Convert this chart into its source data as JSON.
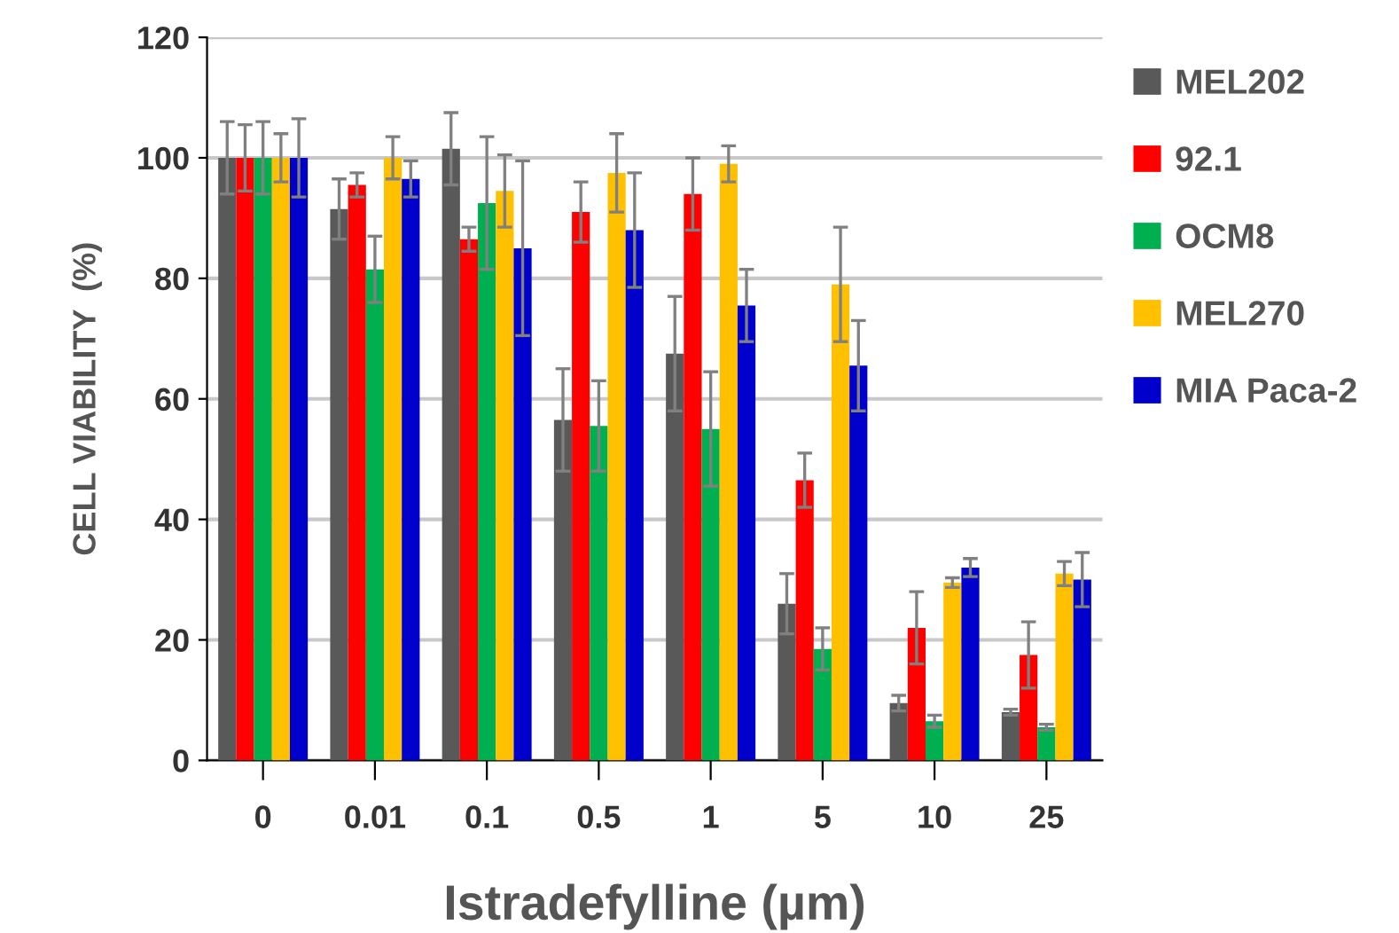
{
  "chart_data": {
    "type": "bar",
    "xlabel": "Istradefylline (µm)",
    "ylabel": "CELL VIABILITY  (%)",
    "categories": [
      "0",
      "0.01",
      "0.1",
      "0.5",
      "1",
      "5",
      "10",
      "25"
    ],
    "series": [
      {
        "name": "MEL202",
        "color": "#595959",
        "values": [
          100,
          91.5,
          101.5,
          56.5,
          67.5,
          26,
          9.5,
          8
        ],
        "errors": [
          6,
          5,
          6,
          8.5,
          9.5,
          5,
          1.3,
          0.5
        ]
      },
      {
        "name": "92.1",
        "color": "#ff0000",
        "values": [
          100,
          95.5,
          86.5,
          91,
          94,
          46.5,
          22,
          17.5
        ],
        "errors": [
          5.5,
          2,
          2,
          5,
          6,
          4.5,
          6,
          5.5
        ]
      },
      {
        "name": "OCM8",
        "color": "#00b050",
        "values": [
          100,
          81.5,
          92.5,
          55.5,
          55,
          18.5,
          6.5,
          5.5
        ],
        "errors": [
          6,
          5.5,
          11,
          7.5,
          9.5,
          3.5,
          1,
          0.5
        ]
      },
      {
        "name": "MEL270",
        "color": "#ffc000",
        "values": [
          100,
          100,
          94.5,
          97.5,
          99,
          79,
          29.5,
          31
        ],
        "errors": [
          4,
          3.5,
          6,
          6.5,
          3,
          9.5,
          0.8,
          2
        ]
      },
      {
        "name": "MIA Paca-2",
        "color": "#0000cc",
        "values": [
          100,
          96.5,
          85,
          88,
          75.5,
          65.5,
          32,
          30
        ],
        "errors": [
          6.5,
          3,
          14.5,
          9.5,
          6,
          7.5,
          1.5,
          4.5
        ]
      }
    ],
    "ylim": [
      0,
      120
    ],
    "yticks": [
      0,
      20,
      40,
      60,
      80,
      100,
      120
    ],
    "grid": "y",
    "legend": "right"
  }
}
